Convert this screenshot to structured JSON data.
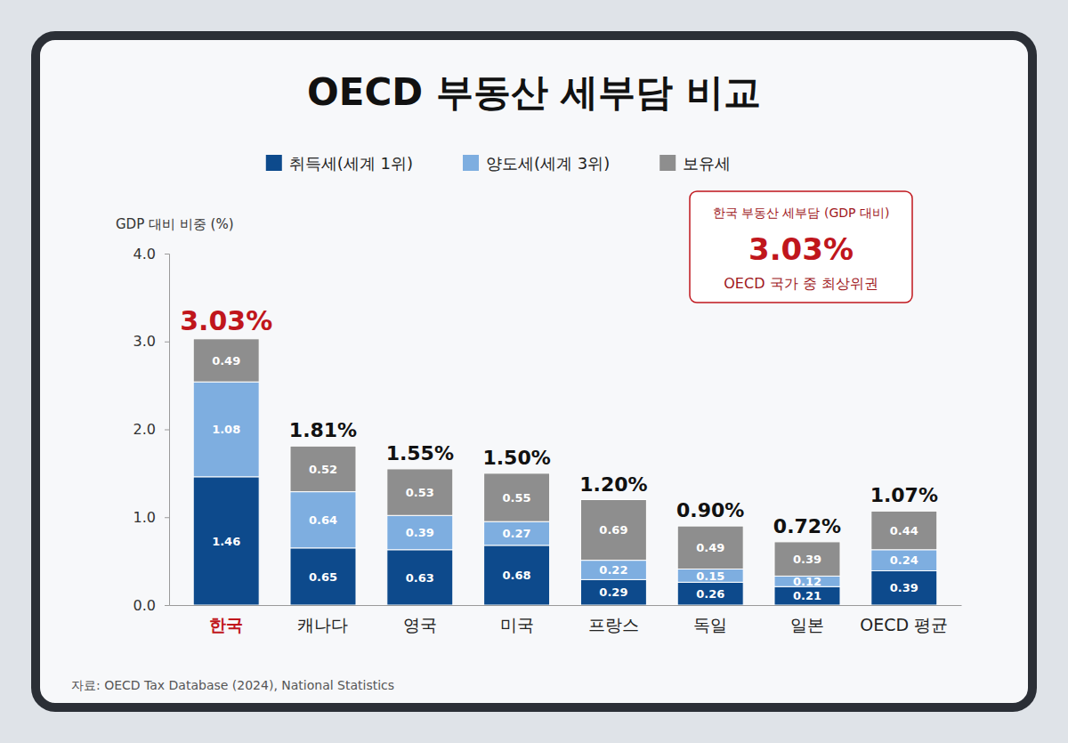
{
  "chart_data": {
    "type": "bar",
    "title": "OECD 부동산 세부담 비교",
    "y_label": "GDP 대비 비중 (%)",
    "categories": [
      "한국",
      "캐나다",
      "영국",
      "미국",
      "프랑스",
      "독일",
      "일본",
      "OECD 평균"
    ],
    "series": [
      {
        "name": "취득세(세계 1위)",
        "color": "#0d4a8c",
        "values": [
          1.46,
          0.65,
          0.63,
          0.68,
          0.29,
          0.26,
          0.21,
          0.39
        ]
      },
      {
        "name": "양도세(세계 3위)",
        "color": "#7eaee0",
        "values": [
          1.08,
          0.64,
          0.39,
          0.27,
          0.22,
          0.15,
          0.12,
          0.24
        ]
      },
      {
        "name": "보유세",
        "color": "#8e8e8e",
        "values": [
          0.49,
          0.52,
          0.53,
          0.55,
          0.69,
          0.49,
          0.39,
          0.44
        ]
      }
    ],
    "totals": [
      3.03,
      1.81,
      1.55,
      1.5,
      1.2,
      0.9,
      0.72,
      1.07
    ],
    "total_labels": [
      "3.03%",
      "1.81%",
      "1.55%",
      "1.50%",
      "1.20%",
      "0.90%",
      "0.72%",
      "1.07%"
    ],
    "ylim": [
      0,
      4
    ],
    "yticks": [
      {
        "value": 0,
        "label": "0.0"
      },
      {
        "value": 1,
        "label": "1.0"
      },
      {
        "value": 2,
        "label": "2.0"
      },
      {
        "value": 3,
        "label": "3.0"
      },
      {
        "value": 4,
        "label": "4.0"
      }
    ],
    "stacked": true,
    "data_labels": true,
    "grid": false,
    "legend": "top",
    "annotation": [
      "한국 부동산 세부담 (GDP 대비)",
      "3.03%",
      "OECD 국가 중 최상위권"
    ],
    "source": "자료: OECD Tax Database (2024), National Statistics"
  }
}
